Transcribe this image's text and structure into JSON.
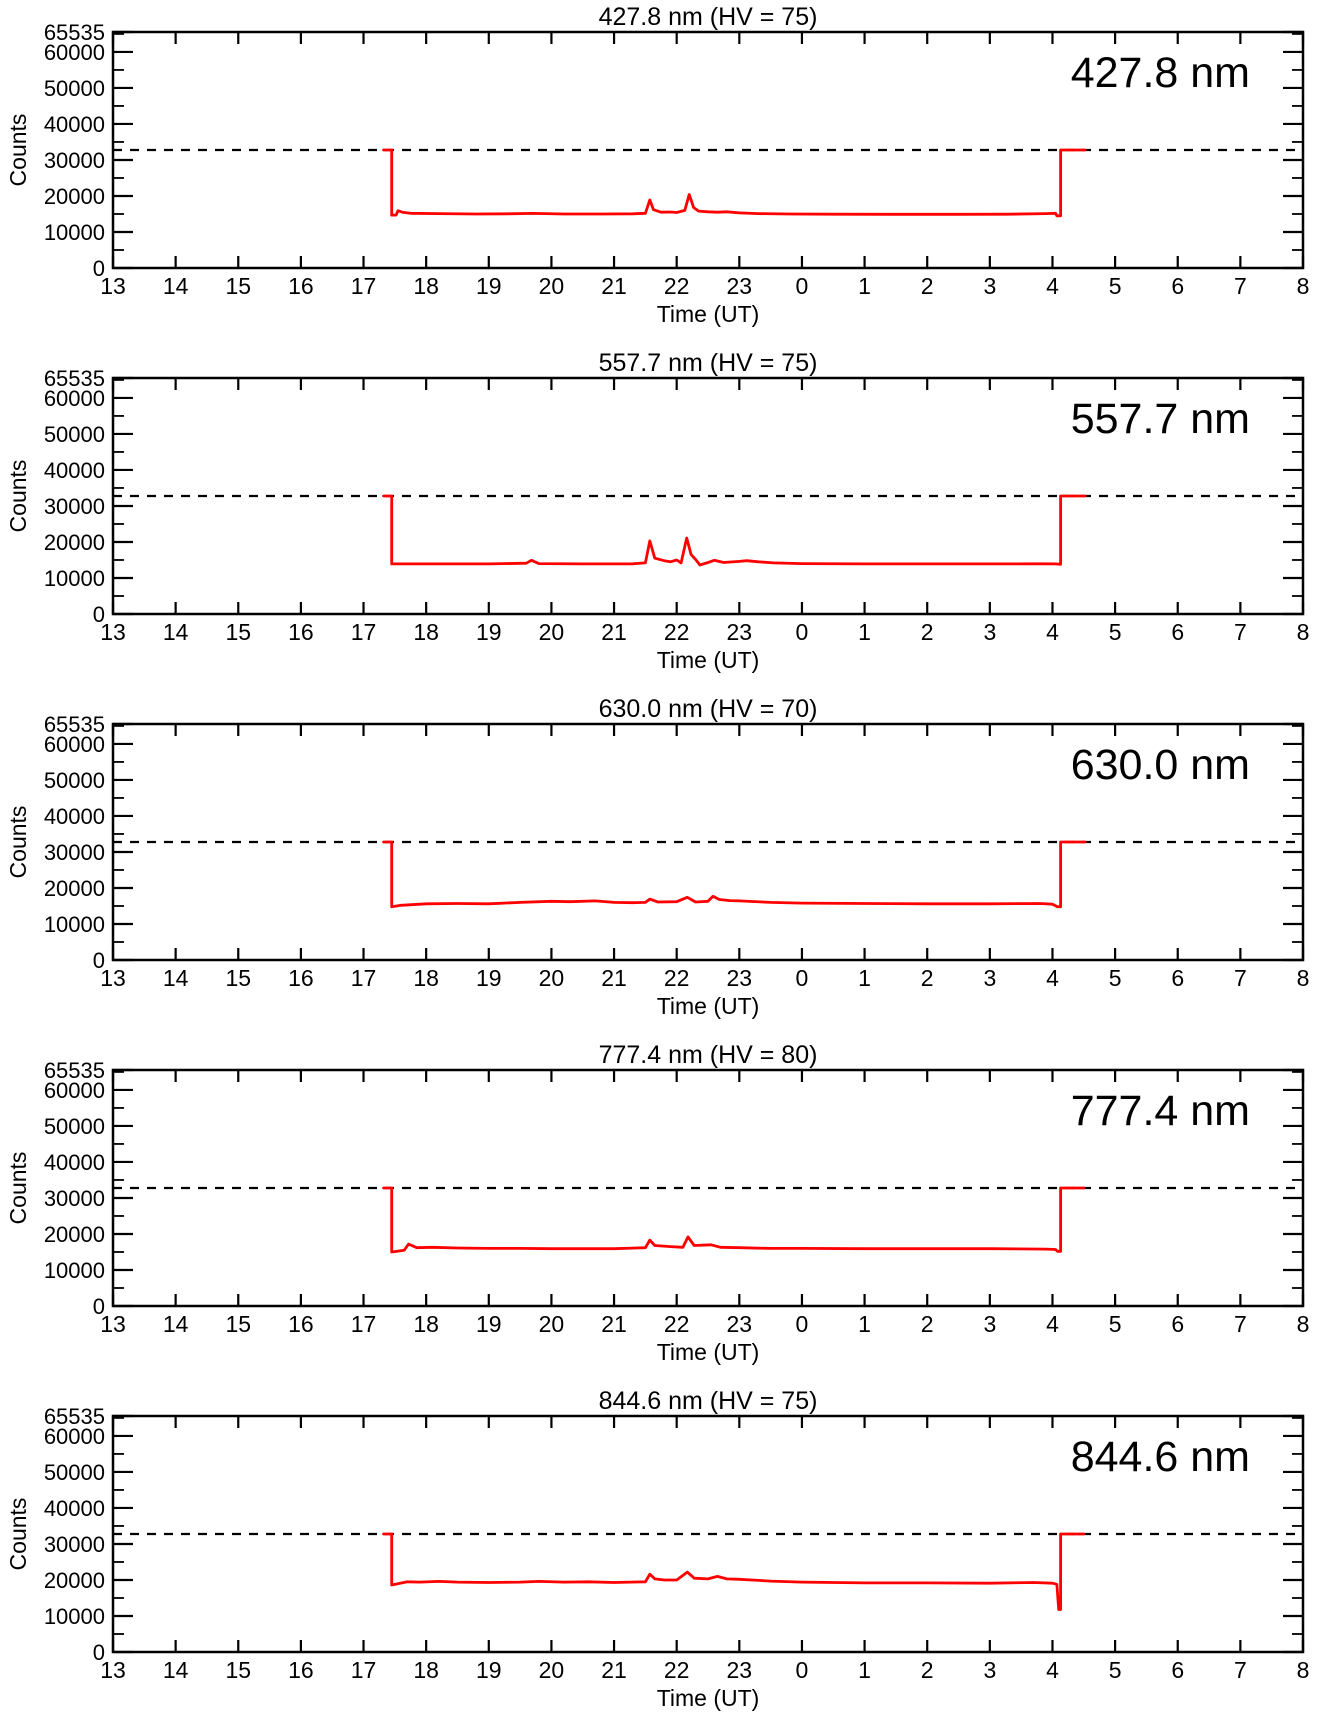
{
  "figure": {
    "background": "#ffffff",
    "trace_color": "#ff0000",
    "threshold_value": 32767
  },
  "chart_data": [
    {
      "type": "line",
      "title": "427.8 nm (HV = 75)",
      "inplot_label": "427.8 nm",
      "xlabel": "Time (UT)",
      "ylabel": "Counts",
      "xlim": [
        13,
        32
      ],
      "ylim": [
        0,
        65535
      ],
      "x_tick_values": [
        13,
        14,
        15,
        16,
        17,
        18,
        19,
        20,
        21,
        22,
        23,
        24,
        25,
        26,
        27,
        28,
        29,
        30,
        31,
        32
      ],
      "x_tick_labels": [
        "13",
        "14",
        "15",
        "16",
        "17",
        "18",
        "19",
        "20",
        "21",
        "22",
        "23",
        "0",
        "1",
        "2",
        "3",
        "4",
        "5",
        "6",
        "7",
        "8"
      ],
      "y_tick_values": [
        0,
        10000,
        20000,
        30000,
        40000,
        50000,
        60000,
        65535
      ],
      "y_tick_labels": [
        "0",
        "10000",
        "20000",
        "30000",
        "40000",
        "50000",
        "60000",
        "65535"
      ],
      "y_minor_step": 5000,
      "threshold": 32767,
      "threshold_style": "dashed",
      "line_color": "#ff0000",
      "series": [
        {
          "name": "counts",
          "points": [
            [
              17.32,
              32767
            ],
            [
              17.45,
              32767
            ],
            [
              17.45,
              14700
            ],
            [
              17.52,
              14700
            ],
            [
              17.55,
              15900
            ],
            [
              17.62,
              15500
            ],
            [
              17.75,
              15200
            ],
            [
              18.2,
              15100
            ],
            [
              18.8,
              15000
            ],
            [
              19.3,
              15050
            ],
            [
              19.7,
              15150
            ],
            [
              20.2,
              15000
            ],
            [
              20.8,
              15000
            ],
            [
              21.3,
              15050
            ],
            [
              21.5,
              15200
            ],
            [
              21.57,
              18900
            ],
            [
              21.63,
              16200
            ],
            [
              21.75,
              15500
            ],
            [
              21.9,
              15550
            ],
            [
              22.0,
              15400
            ],
            [
              22.13,
              16000
            ],
            [
              22.2,
              20400
            ],
            [
              22.27,
              16800
            ],
            [
              22.35,
              15800
            ],
            [
              22.5,
              15600
            ],
            [
              22.65,
              15500
            ],
            [
              22.8,
              15600
            ],
            [
              23.0,
              15300
            ],
            [
              23.3,
              15100
            ],
            [
              23.8,
              15000
            ],
            [
              24.5,
              14950
            ],
            [
              25.5,
              14900
            ],
            [
              26.5,
              14900
            ],
            [
              27.3,
              14950
            ],
            [
              27.9,
              15100
            ],
            [
              28.05,
              15200
            ],
            [
              28.07,
              14500
            ],
            [
              28.13,
              14500
            ],
            [
              28.13,
              32767
            ],
            [
              28.52,
              32767
            ]
          ]
        }
      ]
    },
    {
      "type": "line",
      "title": "557.7 nm (HV = 75)",
      "inplot_label": "557.7 nm",
      "xlabel": "Time (UT)",
      "ylabel": "Counts",
      "xlim": [
        13,
        32
      ],
      "ylim": [
        0,
        65535
      ],
      "x_tick_values": [
        13,
        14,
        15,
        16,
        17,
        18,
        19,
        20,
        21,
        22,
        23,
        24,
        25,
        26,
        27,
        28,
        29,
        30,
        31,
        32
      ],
      "x_tick_labels": [
        "13",
        "14",
        "15",
        "16",
        "17",
        "18",
        "19",
        "20",
        "21",
        "22",
        "23",
        "0",
        "1",
        "2",
        "3",
        "4",
        "5",
        "6",
        "7",
        "8"
      ],
      "y_tick_values": [
        0,
        10000,
        20000,
        30000,
        40000,
        50000,
        60000,
        65535
      ],
      "y_tick_labels": [
        "0",
        "10000",
        "20000",
        "30000",
        "40000",
        "50000",
        "60000",
        "65535"
      ],
      "y_minor_step": 5000,
      "threshold": 32767,
      "threshold_style": "dashed",
      "line_color": "#ff0000",
      "series": [
        {
          "name": "counts",
          "points": [
            [
              17.32,
              32767
            ],
            [
              17.45,
              32767
            ],
            [
              17.45,
              13900
            ],
            [
              18.2,
              13900
            ],
            [
              19.0,
              13900
            ],
            [
              19.6,
              14100
            ],
            [
              19.68,
              14900
            ],
            [
              19.8,
              14000
            ],
            [
              20.5,
              13900
            ],
            [
              21.3,
              13950
            ],
            [
              21.5,
              14200
            ],
            [
              21.57,
              20300
            ],
            [
              21.65,
              15500
            ],
            [
              21.8,
              14800
            ],
            [
              21.9,
              14500
            ],
            [
              22.0,
              15000
            ],
            [
              22.07,
              14200
            ],
            [
              22.16,
              21100
            ],
            [
              22.23,
              16500
            ],
            [
              22.3,
              15200
            ],
            [
              22.37,
              13600
            ],
            [
              22.5,
              14300
            ],
            [
              22.6,
              14900
            ],
            [
              22.75,
              14300
            ],
            [
              23.0,
              14600
            ],
            [
              23.12,
              14800
            ],
            [
              23.3,
              14500
            ],
            [
              23.55,
              14200
            ],
            [
              24.0,
              14000
            ],
            [
              25.0,
              13900
            ],
            [
              26.0,
              13900
            ],
            [
              27.0,
              13900
            ],
            [
              27.8,
              13950
            ],
            [
              28.05,
              13900
            ],
            [
              28.13,
              13800
            ],
            [
              28.13,
              32767
            ],
            [
              28.52,
              32767
            ]
          ]
        }
      ]
    },
    {
      "type": "line",
      "title": "630.0 nm (HV = 70)",
      "inplot_label": "630.0 nm",
      "xlabel": "Time (UT)",
      "ylabel": "Counts",
      "xlim": [
        13,
        32
      ],
      "ylim": [
        0,
        65535
      ],
      "x_tick_values": [
        13,
        14,
        15,
        16,
        17,
        18,
        19,
        20,
        21,
        22,
        23,
        24,
        25,
        26,
        27,
        28,
        29,
        30,
        31,
        32
      ],
      "x_tick_labels": [
        "13",
        "14",
        "15",
        "16",
        "17",
        "18",
        "19",
        "20",
        "21",
        "22",
        "23",
        "0",
        "1",
        "2",
        "3",
        "4",
        "5",
        "6",
        "7",
        "8"
      ],
      "y_tick_values": [
        0,
        10000,
        20000,
        30000,
        40000,
        50000,
        60000,
        65535
      ],
      "y_tick_labels": [
        "0",
        "10000",
        "20000",
        "30000",
        "40000",
        "50000",
        "60000",
        "65535"
      ],
      "y_minor_step": 5000,
      "threshold": 32767,
      "threshold_style": "dashed",
      "line_color": "#ff0000",
      "series": [
        {
          "name": "counts",
          "points": [
            [
              17.32,
              32767
            ],
            [
              17.45,
              32767
            ],
            [
              17.45,
              14800
            ],
            [
              17.6,
              15200
            ],
            [
              18.0,
              15600
            ],
            [
              18.5,
              15700
            ],
            [
              19.0,
              15600
            ],
            [
              19.5,
              16000
            ],
            [
              20.0,
              16300
            ],
            [
              20.3,
              16200
            ],
            [
              20.7,
              16400
            ],
            [
              21.0,
              16000
            ],
            [
              21.3,
              15900
            ],
            [
              21.5,
              16000
            ],
            [
              21.57,
              16900
            ],
            [
              21.7,
              16100
            ],
            [
              22.0,
              16200
            ],
            [
              22.17,
              17400
            ],
            [
              22.3,
              16100
            ],
            [
              22.5,
              16300
            ],
            [
              22.58,
              17700
            ],
            [
              22.68,
              16800
            ],
            [
              22.85,
              16500
            ],
            [
              23.0,
              16400
            ],
            [
              23.5,
              16000
            ],
            [
              24.0,
              15800
            ],
            [
              25.0,
              15700
            ],
            [
              26.0,
              15600
            ],
            [
              27.0,
              15600
            ],
            [
              27.8,
              15700
            ],
            [
              28.0,
              15500
            ],
            [
              28.08,
              14800
            ],
            [
              28.13,
              14800
            ],
            [
              28.13,
              32767
            ],
            [
              28.52,
              32767
            ]
          ]
        }
      ]
    },
    {
      "type": "line",
      "title": "777.4 nm (HV = 80)",
      "inplot_label": "777.4 nm",
      "xlabel": "Time (UT)",
      "ylabel": "Counts",
      "xlim": [
        13,
        32
      ],
      "ylim": [
        0,
        65535
      ],
      "x_tick_values": [
        13,
        14,
        15,
        16,
        17,
        18,
        19,
        20,
        21,
        22,
        23,
        24,
        25,
        26,
        27,
        28,
        29,
        30,
        31,
        32
      ],
      "x_tick_labels": [
        "13",
        "14",
        "15",
        "16",
        "17",
        "18",
        "19",
        "20",
        "21",
        "22",
        "23",
        "0",
        "1",
        "2",
        "3",
        "4",
        "5",
        "6",
        "7",
        "8"
      ],
      "y_tick_values": [
        0,
        10000,
        20000,
        30000,
        40000,
        50000,
        60000,
        65535
      ],
      "y_tick_labels": [
        "0",
        "10000",
        "20000",
        "30000",
        "40000",
        "50000",
        "60000",
        "65535"
      ],
      "y_minor_step": 5000,
      "threshold": 32767,
      "threshold_style": "dashed",
      "line_color": "#ff0000",
      "series": [
        {
          "name": "counts",
          "points": [
            [
              17.32,
              32767
            ],
            [
              17.45,
              32767
            ],
            [
              17.45,
              15000
            ],
            [
              17.65,
              15500
            ],
            [
              17.72,
              17200
            ],
            [
              17.85,
              16200
            ],
            [
              18.1,
              16300
            ],
            [
              18.5,
              16100
            ],
            [
              19.0,
              16000
            ],
            [
              19.5,
              16000
            ],
            [
              20.0,
              15900
            ],
            [
              20.5,
              15900
            ],
            [
              21.0,
              15900
            ],
            [
              21.5,
              16200
            ],
            [
              21.57,
              18300
            ],
            [
              21.65,
              16800
            ],
            [
              21.9,
              16500
            ],
            [
              22.1,
              16300
            ],
            [
              22.18,
              19200
            ],
            [
              22.28,
              16800
            ],
            [
              22.55,
              17000
            ],
            [
              22.7,
              16300
            ],
            [
              23.0,
              16200
            ],
            [
              23.5,
              16000
            ],
            [
              24.0,
              16000
            ],
            [
              25.0,
              15900
            ],
            [
              26.0,
              15900
            ],
            [
              27.0,
              15900
            ],
            [
              27.9,
              15800
            ],
            [
              28.05,
              15700
            ],
            [
              28.08,
              15200
            ],
            [
              28.13,
              15200
            ],
            [
              28.13,
              32767
            ],
            [
              28.5,
              32767
            ]
          ]
        }
      ]
    },
    {
      "type": "line",
      "title": "844.6 nm (HV = 75)",
      "inplot_label": "844.6 nm",
      "xlabel": "Time (UT)",
      "ylabel": "Counts",
      "xlim": [
        13,
        32
      ],
      "ylim": [
        0,
        65535
      ],
      "x_tick_values": [
        13,
        14,
        15,
        16,
        17,
        18,
        19,
        20,
        21,
        22,
        23,
        24,
        25,
        26,
        27,
        28,
        29,
        30,
        31,
        32
      ],
      "x_tick_labels": [
        "13",
        "14",
        "15",
        "16",
        "17",
        "18",
        "19",
        "20",
        "21",
        "22",
        "23",
        "0",
        "1",
        "2",
        "3",
        "4",
        "5",
        "6",
        "7",
        "8"
      ],
      "y_tick_values": [
        0,
        10000,
        20000,
        30000,
        40000,
        50000,
        60000,
        65535
      ],
      "y_tick_labels": [
        "0",
        "10000",
        "20000",
        "30000",
        "40000",
        "50000",
        "60000",
        "65535"
      ],
      "y_minor_step": 5000,
      "threshold": 32767,
      "threshold_style": "dashed",
      "line_color": "#ff0000",
      "series": [
        {
          "name": "counts",
          "points": [
            [
              17.32,
              32767
            ],
            [
              17.45,
              32767
            ],
            [
              17.45,
              18600
            ],
            [
              17.7,
              19500
            ],
            [
              17.9,
              19400
            ],
            [
              18.2,
              19600
            ],
            [
              18.5,
              19400
            ],
            [
              19.0,
              19300
            ],
            [
              19.5,
              19400
            ],
            [
              19.8,
              19600
            ],
            [
              20.2,
              19400
            ],
            [
              20.6,
              19500
            ],
            [
              21.0,
              19300
            ],
            [
              21.5,
              19500
            ],
            [
              21.57,
              21600
            ],
            [
              21.65,
              20300
            ],
            [
              21.8,
              20000
            ],
            [
              22.0,
              20000
            ],
            [
              22.17,
              22200
            ],
            [
              22.28,
              20500
            ],
            [
              22.5,
              20300
            ],
            [
              22.65,
              21000
            ],
            [
              22.8,
              20300
            ],
            [
              23.0,
              20200
            ],
            [
              23.2,
              20000
            ],
            [
              23.5,
              19700
            ],
            [
              24.0,
              19400
            ],
            [
              25.0,
              19200
            ],
            [
              26.0,
              19200
            ],
            [
              27.0,
              19100
            ],
            [
              27.7,
              19300
            ],
            [
              28.0,
              19100
            ],
            [
              28.07,
              18800
            ],
            [
              28.1,
              11800
            ],
            [
              28.13,
              11800
            ],
            [
              28.13,
              32767
            ],
            [
              28.5,
              32767
            ]
          ]
        }
      ]
    }
  ]
}
